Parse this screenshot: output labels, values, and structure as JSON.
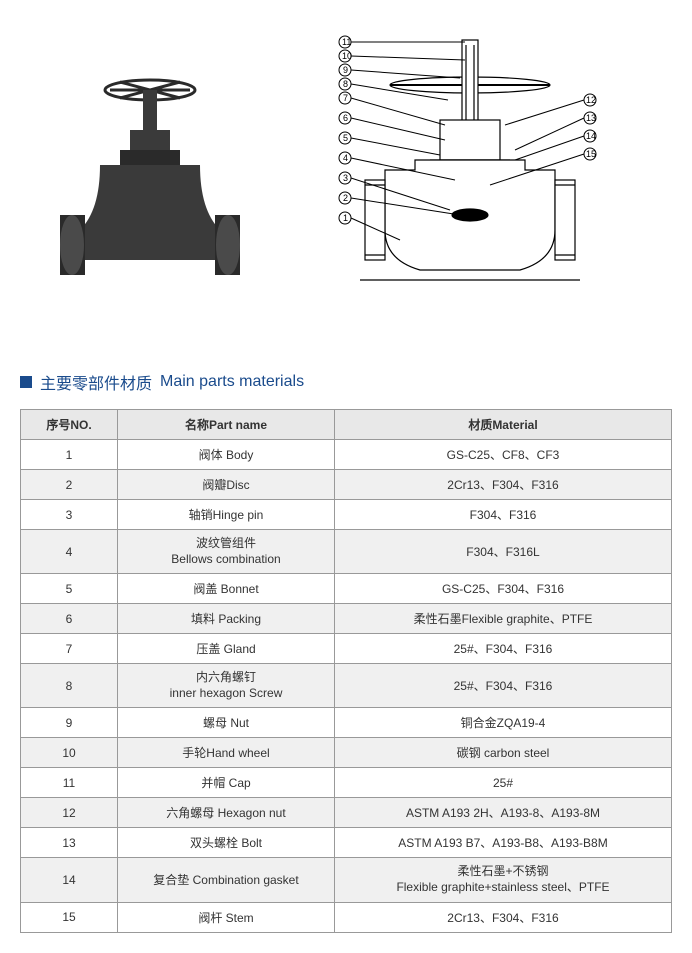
{
  "section_title_cn": "主要零部件材质",
  "section_title_en": "Main parts materials",
  "table": {
    "headers": {
      "no": "序号NO.",
      "part": "名称Part name",
      "material": "材质Material"
    },
    "rows": [
      {
        "no": "1",
        "part": "阀体 Body",
        "material": "GS-C25、CF8、CF3"
      },
      {
        "no": "2",
        "part": "阀瓣Disc",
        "material": "2Cr13、F304、F316"
      },
      {
        "no": "3",
        "part": "轴销Hinge pin",
        "material": "F304、F316"
      },
      {
        "no": "4",
        "part_cn": "波纹管组件",
        "part_en": "Bellows combination",
        "material": "F304、F316L"
      },
      {
        "no": "5",
        "part": "阀盖 Bonnet",
        "material": "GS-C25、F304、F316"
      },
      {
        "no": "6",
        "part": "填料 Packing",
        "material": "柔性石墨Flexible graphite、PTFE"
      },
      {
        "no": "7",
        "part": "压盖 Gland",
        "material": "25#、F304、F316"
      },
      {
        "no": "8",
        "part_cn": "内六角螺钉",
        "part_en": "inner hexagon Screw",
        "material": "25#、F304、F316"
      },
      {
        "no": "9",
        "part": "螺母 Nut",
        "material": "铜合金ZQA19-4"
      },
      {
        "no": "10",
        "part": "手轮Hand wheel",
        "material": "碳钢 carbon steel"
      },
      {
        "no": "11",
        "part": "并帽 Cap",
        "material": "25#"
      },
      {
        "no": "12",
        "part": "六角螺母 Hexagon nut",
        "material": "ASTM A193 2H、A193-8、A193-8M"
      },
      {
        "no": "13",
        "part": "双头螺栓 Bolt",
        "material": "ASTM A193 B7、A193-B8、A193-B8M"
      },
      {
        "no": "14",
        "part": "复合垫 Combination gasket",
        "material_cn": "柔性石墨+不锈钢",
        "material_en": "Flexible graphite+stainless steel、PTFE"
      },
      {
        "no": "15",
        "part": "阀杆 Stem",
        "material": "2Cr13、F304、F316"
      }
    ]
  },
  "diagram": {
    "callout_numbers": [
      "1",
      "2",
      "3",
      "4",
      "5",
      "6",
      "7",
      "8",
      "9",
      "10",
      "11",
      "12",
      "13",
      "14",
      "15"
    ],
    "photo_color": "#3a3a3a",
    "drawing_color": "#000000",
    "background": "#ffffff"
  },
  "colors": {
    "title_color": "#1a4b8c",
    "border_color": "#999999",
    "header_bg": "#e8e8e8",
    "alt_row_bg": "#f0f0f0"
  }
}
